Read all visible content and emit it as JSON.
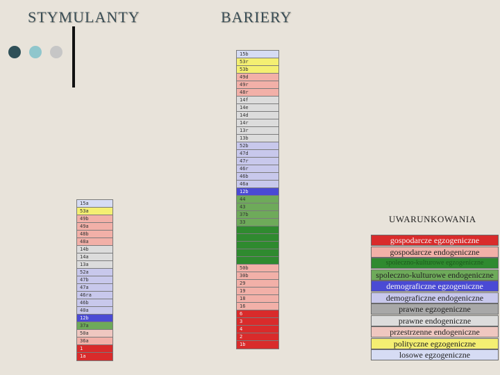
{
  "headings": {
    "left": "STYMULANTY",
    "right": "BARIERY"
  },
  "colors": {
    "gosp_egz": "#d92b2b",
    "gosp_endo": "#f2b0a8",
    "spol_egz": "#2f8a2f",
    "spol_endo": "#6eaa5a",
    "demo_egz": "#4a4ad4",
    "demo_endo": "#c8c8ec",
    "praw_egz": "#a8a8a8",
    "praw_endo": "#dcdcdc",
    "przestrz": "#efc7c0",
    "polit": "#f4ef72",
    "losowe": "#d6dcf4",
    "accent_dark": "#2f5058",
    "accent_mid": "#8fc6cc",
    "accent_light": "#c6c6c6"
  },
  "stymulanty": [
    {
      "label": "15a",
      "cat": "losowe"
    },
    {
      "label": "53a",
      "cat": "polit"
    },
    {
      "label": "49b",
      "cat": "gosp_endo"
    },
    {
      "label": "49a",
      "cat": "gosp_endo"
    },
    {
      "label": "48b",
      "cat": "gosp_endo"
    },
    {
      "label": "48a",
      "cat": "gosp_endo"
    },
    {
      "label": "14b",
      "cat": "praw_endo"
    },
    {
      "label": "14a",
      "cat": "praw_endo"
    },
    {
      "label": "13a",
      "cat": "praw_endo"
    },
    {
      "label": "52a",
      "cat": "demo_endo"
    },
    {
      "label": "47b",
      "cat": "demo_endo"
    },
    {
      "label": "47a",
      "cat": "demo_endo"
    },
    {
      "label": "46ra",
      "cat": "demo_endo"
    },
    {
      "label": "46b",
      "cat": "demo_endo"
    },
    {
      "label": "40a",
      "cat": "demo_endo"
    },
    {
      "label": "12b",
      "cat": "demo_egz"
    },
    {
      "label": "37a",
      "cat": "spol_endo"
    },
    {
      "label": "50a",
      "cat": "przestrz"
    },
    {
      "label": "36a",
      "cat": "gosp_endo"
    },
    {
      "label": "1",
      "cat": "gosp_egz"
    },
    {
      "label": "1a",
      "cat": "gosp_egz"
    }
  ],
  "bariery": [
    {
      "label": "15b",
      "cat": "losowe"
    },
    {
      "label": "53r",
      "cat": "polit"
    },
    {
      "label": "53b",
      "cat": "polit"
    },
    {
      "label": "49d",
      "cat": "gosp_endo"
    },
    {
      "label": "49r",
      "cat": "gosp_endo"
    },
    {
      "label": "48r",
      "cat": "gosp_endo"
    },
    {
      "label": "14f",
      "cat": "praw_endo"
    },
    {
      "label": "14e",
      "cat": "praw_endo"
    },
    {
      "label": "14d",
      "cat": "praw_endo"
    },
    {
      "label": "14r",
      "cat": "praw_endo"
    },
    {
      "label": "13r",
      "cat": "praw_endo"
    },
    {
      "label": "13b",
      "cat": "praw_endo"
    },
    {
      "label": "52b",
      "cat": "demo_endo"
    },
    {
      "label": "47d",
      "cat": "demo_endo"
    },
    {
      "label": "47r",
      "cat": "demo_endo"
    },
    {
      "label": "46r",
      "cat": "demo_endo"
    },
    {
      "label": "46b",
      "cat": "demo_endo"
    },
    {
      "label": "46a",
      "cat": "demo_endo"
    },
    {
      "label": "12b",
      "cat": "demo_egz"
    },
    {
      "label": "44",
      "cat": "spol_endo"
    },
    {
      "label": "43",
      "cat": "spol_endo"
    },
    {
      "label": "37b",
      "cat": "spol_endo"
    },
    {
      "label": "33",
      "cat": "spol_endo"
    },
    {
      "label": "",
      "cat": "spol_egz"
    },
    {
      "label": "",
      "cat": "spol_egz"
    },
    {
      "label": "",
      "cat": "spol_egz"
    },
    {
      "label": "",
      "cat": "spol_egz"
    },
    {
      "label": "",
      "cat": "spol_egz"
    },
    {
      "label": "50b",
      "cat": "gosp_endo"
    },
    {
      "label": "30b",
      "cat": "gosp_endo"
    },
    {
      "label": "29",
      "cat": "gosp_endo"
    },
    {
      "label": "19",
      "cat": "gosp_endo"
    },
    {
      "label": "18",
      "cat": "gosp_endo"
    },
    {
      "label": "16",
      "cat": "gosp_endo"
    },
    {
      "label": "6",
      "cat": "gosp_egz"
    },
    {
      "label": "3",
      "cat": "gosp_egz"
    },
    {
      "label": "4",
      "cat": "gosp_egz"
    },
    {
      "label": "2",
      "cat": "gosp_egz"
    },
    {
      "label": "1b",
      "cat": "gosp_egz"
    }
  ],
  "legend": {
    "title": "UWARUNKOWANIA",
    "items": [
      {
        "label": "gospodarcze egzogeniczne",
        "cat": "gosp_egz"
      },
      {
        "label": "gospodarcze endogeniczne",
        "cat": "gosp_endo"
      },
      {
        "label": "spoleczno-kulturowe egzogeniczne",
        "cat": "spol_egz"
      },
      {
        "label": "spoleczno-kulturowe endogeniczne",
        "cat": "spol_endo"
      },
      {
        "label": "demograficzne egzogeniczne",
        "cat": "demo_egz"
      },
      {
        "label": "demograficzne endogeniczne",
        "cat": "demo_endo"
      },
      {
        "label": "prawne egzogeniczne",
        "cat": "praw_egz"
      },
      {
        "label": "prawne endogeniczne",
        "cat": "praw_endo"
      },
      {
        "label": "przestrzenne endogeniczne",
        "cat": "przestrz"
      },
      {
        "label": "polityczne egzogeniczne",
        "cat": "polit"
      },
      {
        "label": "losowe egzogeniczne",
        "cat": "losowe"
      }
    ]
  }
}
